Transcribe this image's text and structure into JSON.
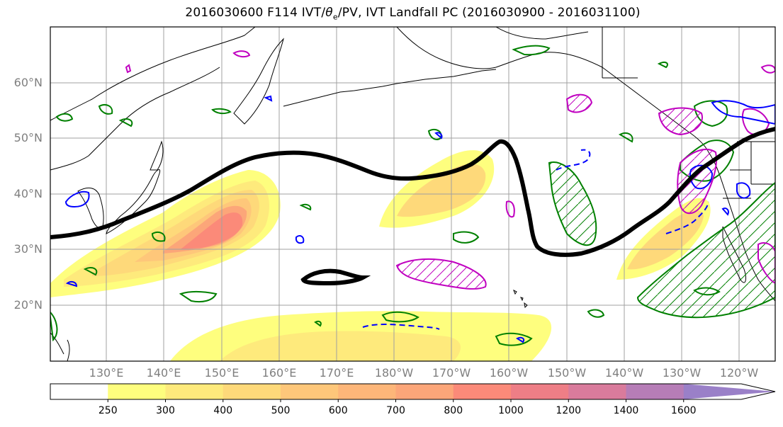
{
  "title": {
    "pre": "2016030600 F114 IVT/",
    "theta": "θ",
    "sub": "e",
    "post": "/PV, IVT Landfall PC (2016030900 - 2016031100)"
  },
  "map": {
    "lat_labels": [
      "60°N",
      "50°N",
      "40°N",
      "30°N",
      "20°N"
    ],
    "lon_labels": [
      "130°E",
      "140°E",
      "150°E",
      "160°E",
      "170°E",
      "180°W",
      "170°W",
      "160°W",
      "150°W",
      "140°W",
      "130°W",
      "120°W"
    ],
    "colors": {
      "coastline": "#000000",
      "gridline": "#a0a0a0",
      "ivt_contour": "#000000",
      "pv_positive": "#c000c0",
      "pv_negative": "#0000ff",
      "theta_e": "#008000"
    }
  },
  "colorbar": {
    "ticks": [
      "250",
      "300",
      "400",
      "500",
      "600",
      "700",
      "800",
      "1000",
      "1200",
      "1400",
      "1600"
    ],
    "colors": [
      "#ffffff",
      "#fefe7e",
      "#feea7c",
      "#fed97a",
      "#fec77a",
      "#fdb679",
      "#fca679",
      "#fb8a79",
      "#ee7e86",
      "#d97b9c",
      "#b67db7",
      "#9a80c8"
    ]
  }
}
